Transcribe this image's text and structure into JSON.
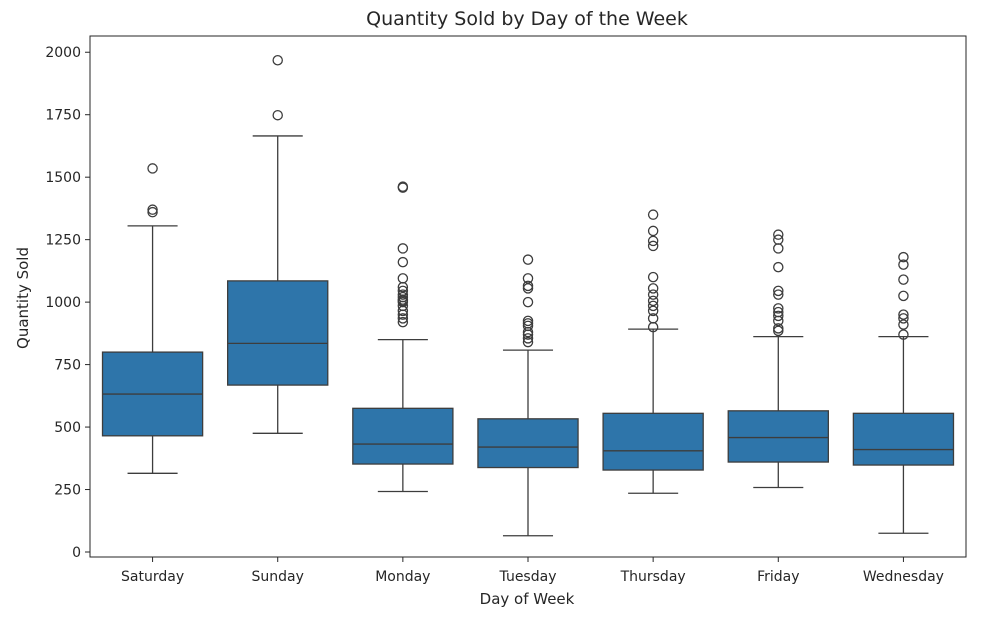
{
  "chart_data": {
    "type": "box",
    "title": "Quantity Sold by Day of the Week",
    "xlabel": "Day of Week",
    "ylabel": "Quantity Sold",
    "ylim": [
      -20,
      2065
    ],
    "yticks": [
      0,
      250,
      500,
      750,
      1000,
      1250,
      1500,
      1750,
      2000
    ],
    "box_color": "#2e75aa",
    "line_color": "#3d3d3d",
    "categories": [
      "Saturday",
      "Sunday",
      "Monday",
      "Tuesday",
      "Thursday",
      "Friday",
      "Wednesday"
    ],
    "boxes": [
      {
        "category": "Saturday",
        "whisker_low": 315,
        "q1": 465,
        "median": 632,
        "q3": 800,
        "whisker_high": 1305,
        "outliers": [
          1360,
          1370,
          1535
        ]
      },
      {
        "category": "Sunday",
        "whisker_low": 475,
        "q1": 668,
        "median": 835,
        "q3": 1085,
        "whisker_high": 1665,
        "outliers": [
          1748,
          1968
        ]
      },
      {
        "category": "Monday",
        "whisker_low": 242,
        "q1": 352,
        "median": 432,
        "q3": 575,
        "whisker_high": 850,
        "outliers": [
          920,
          935,
          950,
          965,
          985,
          1000,
          1005,
          1010,
          1020,
          1030,
          1045,
          1060,
          1095,
          1160,
          1215,
          1458,
          1462
        ]
      },
      {
        "category": "Tuesday",
        "whisker_low": 65,
        "q1": 338,
        "median": 420,
        "q3": 533,
        "whisker_high": 808,
        "outliers": [
          840,
          855,
          870,
          880,
          905,
          915,
          925,
          1000,
          1055,
          1065,
          1095,
          1170
        ]
      },
      {
        "category": "Thursday",
        "whisker_low": 235,
        "q1": 328,
        "median": 405,
        "q3": 555,
        "whisker_high": 892,
        "outliers": [
          900,
          935,
          965,
          985,
          1005,
          1030,
          1055,
          1100,
          1225,
          1245,
          1285,
          1350
        ]
      },
      {
        "category": "Friday",
        "whisker_low": 258,
        "q1": 360,
        "median": 458,
        "q3": 565,
        "whisker_high": 862,
        "outliers": [
          885,
          895,
          925,
          945,
          960,
          975,
          1030,
          1045,
          1140,
          1215,
          1250,
          1270
        ]
      },
      {
        "category": "Wednesday",
        "whisker_low": 75,
        "q1": 348,
        "median": 410,
        "q3": 555,
        "whisker_high": 862,
        "outliers": [
          870,
          910,
          935,
          950,
          1025,
          1090,
          1150,
          1180
        ]
      }
    ]
  }
}
